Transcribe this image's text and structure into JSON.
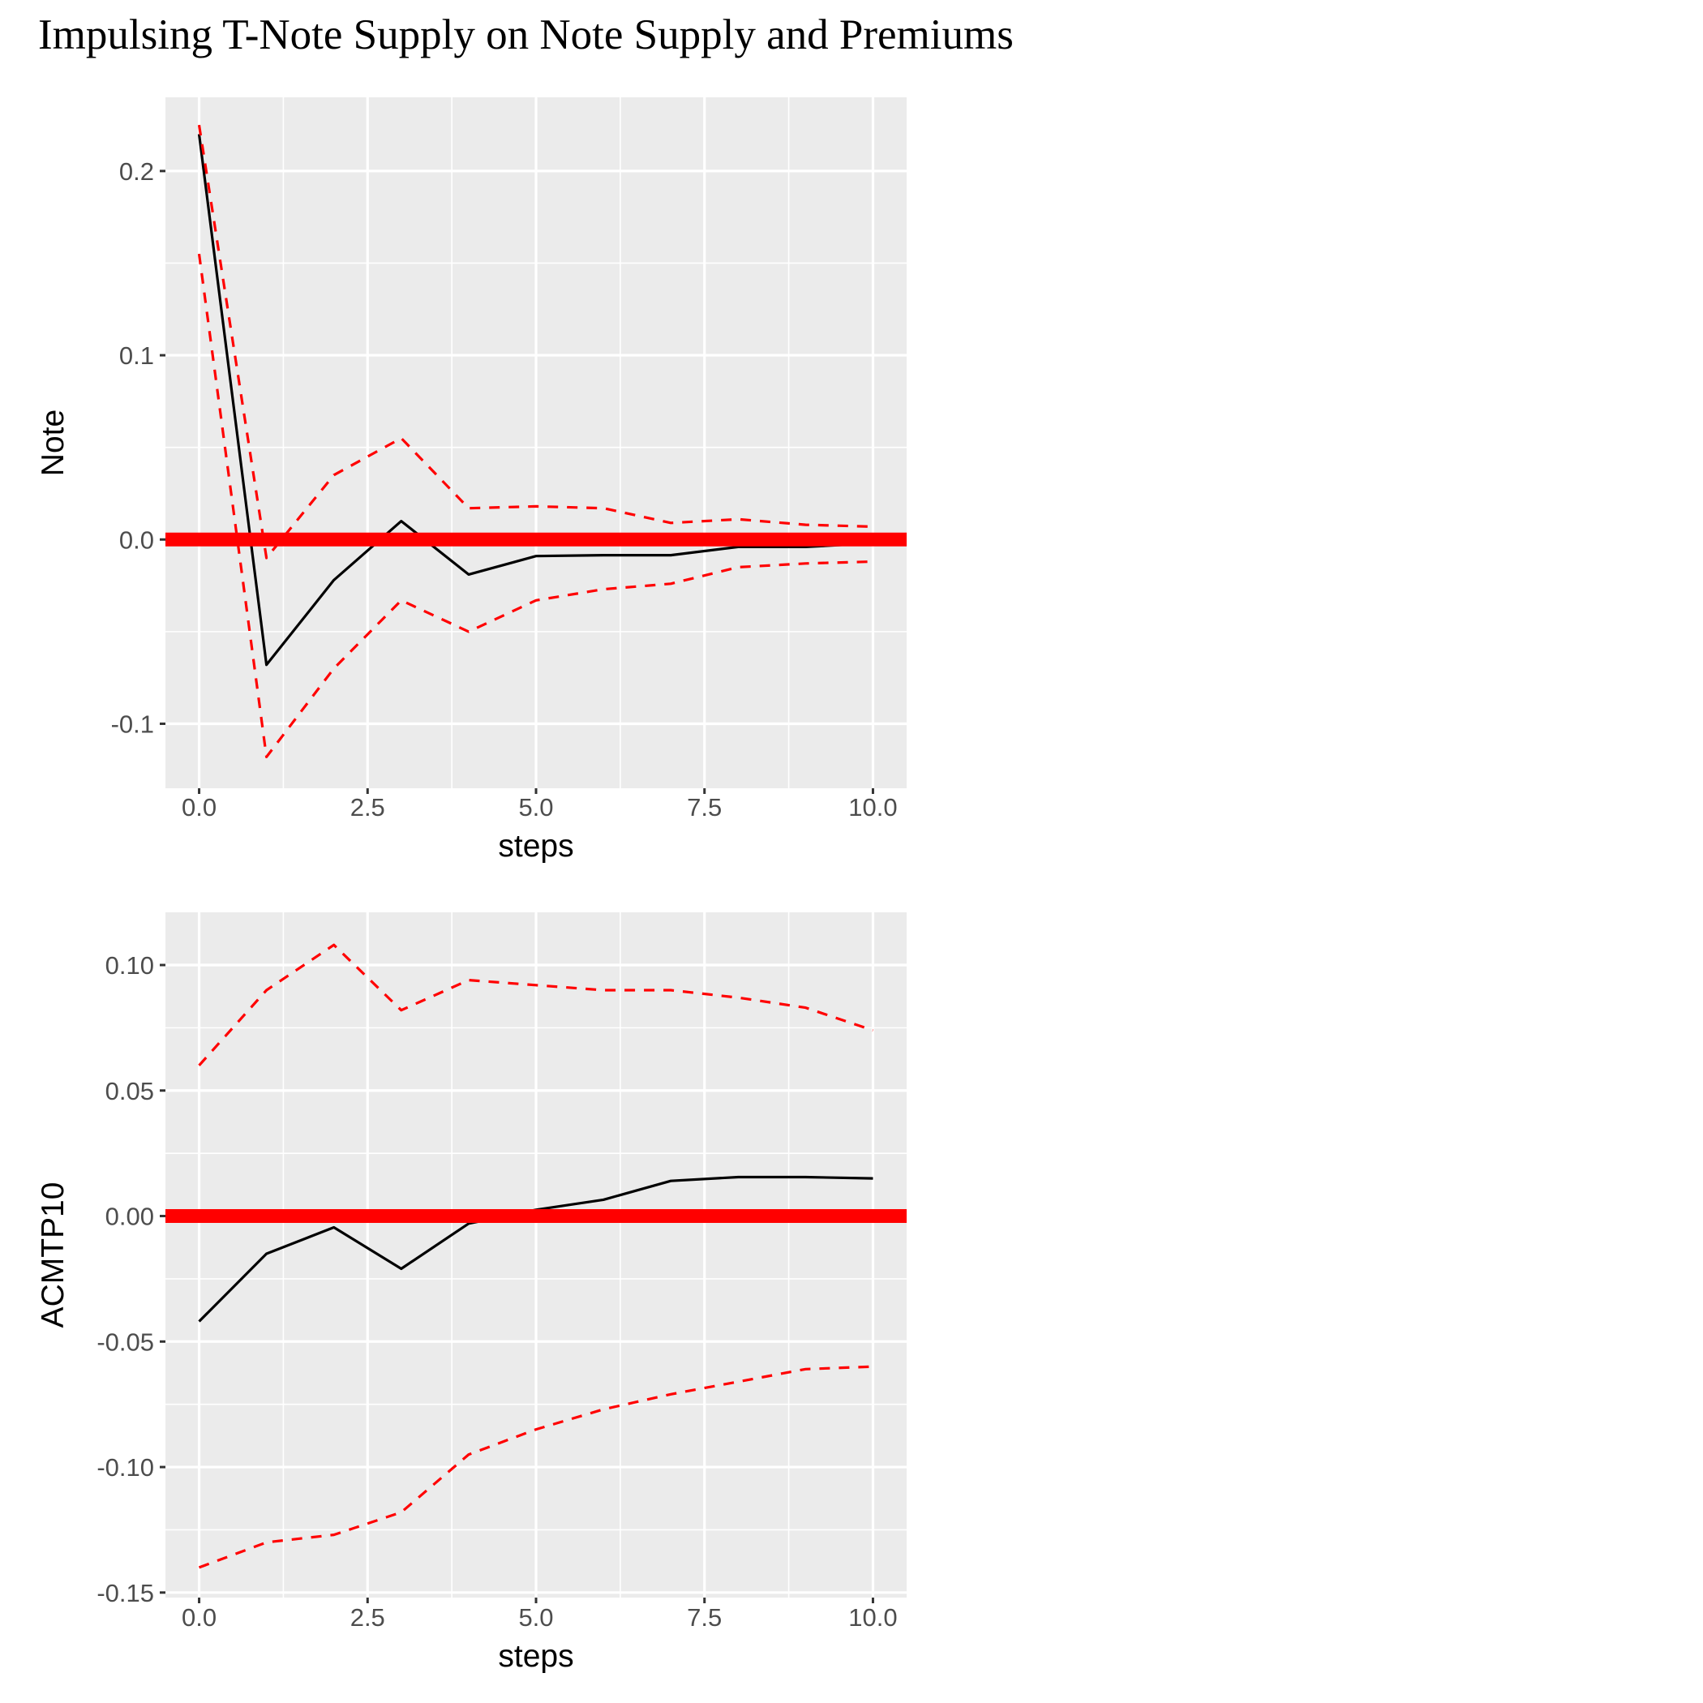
{
  "title": "Impulsing T-Note Supply on Note Supply and Premiums",
  "colors": {
    "panel_background": "#EBEBEB",
    "grid": "#FFFFFF",
    "response_line": "#000000",
    "bands": "#FF0000",
    "zero_line": "#FF0000",
    "tick": "#333333"
  },
  "chart_data": [
    {
      "type": "line",
      "xlabel": "steps",
      "ylabel": "Note",
      "xlim": [
        -0.5,
        10.5
      ],
      "ylim": [
        -0.135,
        0.24
      ],
      "x_ticks": [
        0,
        2.5,
        5,
        7.5,
        10
      ],
      "x_tick_labels": [
        "0.0",
        "2.5",
        "5.0",
        "7.5",
        "10.0"
      ],
      "y_ticks": [
        -0.1,
        0.0,
        0.1,
        0.2
      ],
      "y_tick_labels": [
        "-0.1",
        "0.0",
        "0.1",
        "0.2"
      ],
      "x": [
        0,
        1,
        2,
        3,
        4,
        5,
        6,
        7,
        8,
        9,
        10
      ],
      "series": [
        {
          "role": "response",
          "style": "solid",
          "values": [
            0.22,
            -0.068,
            -0.022,
            0.01,
            -0.019,
            -0.009,
            -0.0085,
            -0.0085,
            -0.004,
            -0.004,
            -0.002
          ]
        },
        {
          "role": "upper",
          "style": "dashed",
          "values": [
            0.225,
            -0.01,
            0.035,
            0.055,
            0.017,
            0.018,
            0.017,
            0.009,
            0.011,
            0.008,
            0.007
          ]
        },
        {
          "role": "lower",
          "style": "dashed",
          "values": [
            0.155,
            -0.118,
            -0.07,
            -0.033,
            -0.05,
            -0.033,
            -0.027,
            -0.024,
            -0.015,
            -0.013,
            -0.012
          ]
        }
      ],
      "zero_line": 0.0,
      "grid": true
    },
    {
      "type": "line",
      "xlabel": "steps",
      "ylabel": "ACMTP10",
      "xlim": [
        -0.5,
        10.5
      ],
      "ylim": [
        -0.152,
        0.121
      ],
      "x_ticks": [
        0,
        2.5,
        5,
        7.5,
        10
      ],
      "x_tick_labels": [
        "0.0",
        "2.5",
        "5.0",
        "7.5",
        "10.0"
      ],
      "y_ticks": [
        -0.15,
        -0.1,
        -0.05,
        0.0,
        0.05,
        0.1
      ],
      "y_tick_labels": [
        "-0.15",
        "-0.10",
        "-0.05",
        "0.00",
        "0.05",
        "0.10"
      ],
      "x": [
        0,
        1,
        2,
        3,
        4,
        5,
        6,
        7,
        8,
        9,
        10
      ],
      "series": [
        {
          "role": "response",
          "style": "solid",
          "values": [
            -0.042,
            -0.015,
            -0.0045,
            -0.021,
            -0.003,
            0.0025,
            0.0065,
            0.014,
            0.0155,
            0.0155,
            0.015
          ]
        },
        {
          "role": "upper",
          "style": "dashed",
          "values": [
            0.06,
            0.09,
            0.108,
            0.082,
            0.094,
            0.092,
            0.09,
            0.09,
            0.087,
            0.083,
            0.074
          ]
        },
        {
          "role": "lower",
          "style": "dashed",
          "values": [
            -0.14,
            -0.13,
            -0.127,
            -0.118,
            -0.095,
            -0.085,
            -0.077,
            -0.071,
            -0.066,
            -0.061,
            -0.06
          ]
        }
      ],
      "zero_line": 0.0,
      "grid": true
    }
  ]
}
